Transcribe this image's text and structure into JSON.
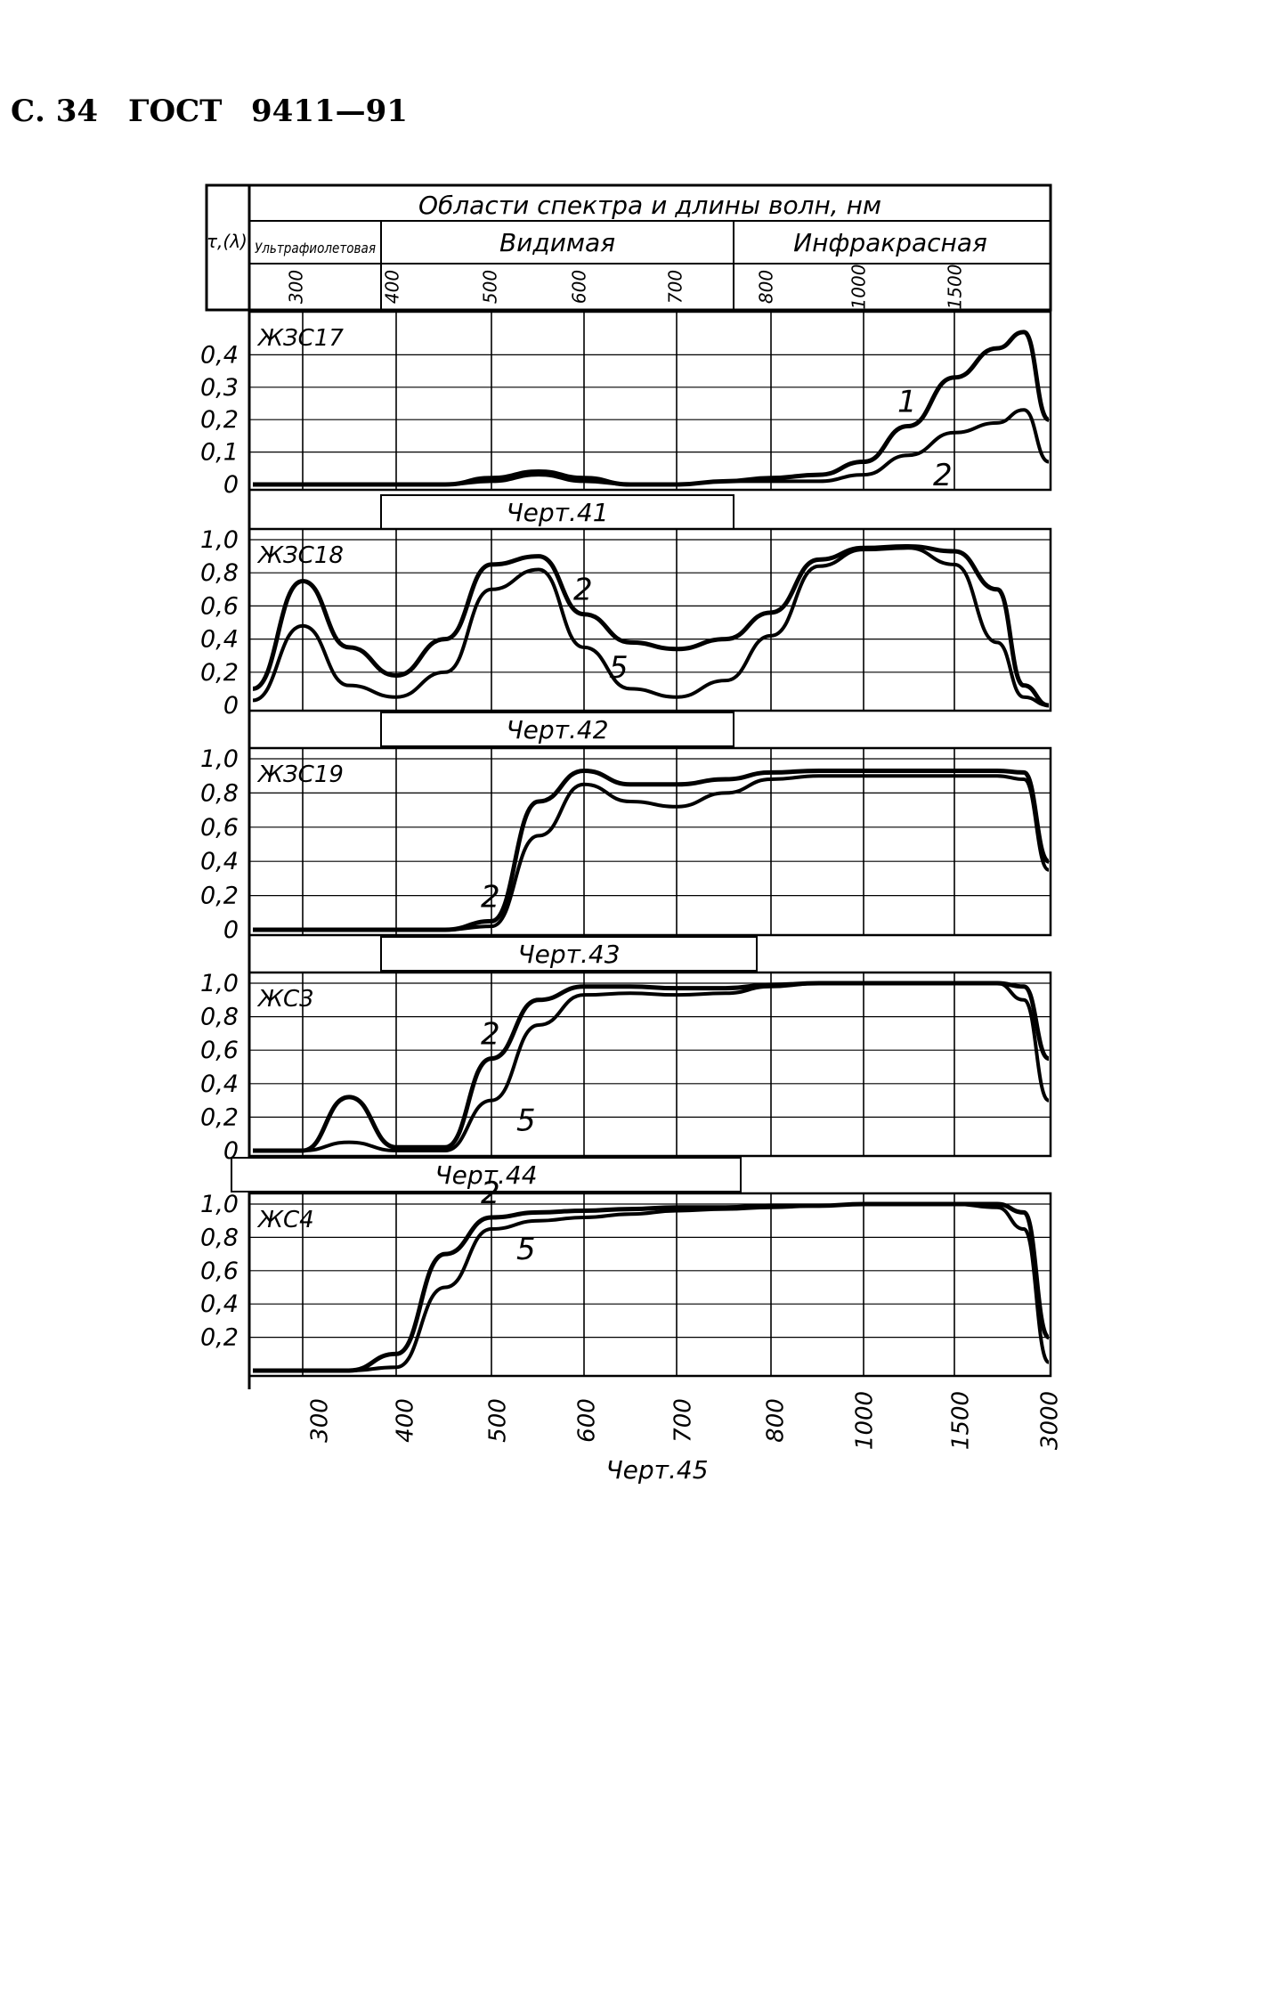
{
  "header": {
    "page_number": "С. 34",
    "standard": "ГОСТ",
    "doc_number": "9411—91"
  },
  "table_head": {
    "corner_label": "τ,(λ)",
    "title": "Области спектра и длины волн, нм",
    "regions": [
      "Ультрафиолетовая",
      "Видимая",
      "Инфракрасная"
    ],
    "wavelength_ticks": [
      "300",
      "400",
      "500",
      "600",
      "700",
      "800",
      "1000",
      "1500"
    ]
  },
  "x_axis_bottom": [
    "300",
    "400",
    "500",
    "600",
    "700",
    "800",
    "1000",
    "1500",
    "3000"
  ],
  "figure_caption": "Черт.45",
  "chart_data": [
    {
      "type": "line",
      "title": "ЖЗС17",
      "caption": "Черт.41",
      "x": [
        "250",
        "300",
        "350",
        "400",
        "450",
        "500",
        "550",
        "600",
        "650",
        "700",
        "750",
        "800",
        "900",
        "1000",
        "1250",
        "1500",
        "2000",
        "2500",
        "3000"
      ],
      "yticks": [
        "0,4",
        "0,3",
        "0,2",
        "0,1",
        "0"
      ],
      "ylim": [
        0,
        0.5
      ],
      "series": [
        {
          "name": "1",
          "values": [
            0,
            0,
            0,
            0,
            0,
            0.02,
            0.04,
            0.02,
            0,
            0,
            0.01,
            0.02,
            0.03,
            0.07,
            0.18,
            0.33,
            0.42,
            0.47,
            0.2
          ]
        },
        {
          "name": "2",
          "values": [
            0,
            0,
            0,
            0,
            0,
            0.01,
            0.03,
            0.01,
            0,
            0,
            0.01,
            0.01,
            0.01,
            0.03,
            0.09,
            0.16,
            0.19,
            0.23,
            0.07
          ]
        }
      ]
    },
    {
      "type": "line",
      "title": "ЖЗС18",
      "caption": "Черт.42",
      "x": [
        "250",
        "300",
        "350",
        "400",
        "450",
        "500",
        "550",
        "600",
        "650",
        "700",
        "750",
        "800",
        "900",
        "1000",
        "1250",
        "1500",
        "2000",
        "2500",
        "3000"
      ],
      "yticks": [
        "1,0",
        "0,8",
        "0,6",
        "0,4",
        "0,2",
        "0"
      ],
      "ylim": [
        0,
        1.0
      ],
      "series": [
        {
          "name": "2",
          "values": [
            0.1,
            0.75,
            0.35,
            0.18,
            0.4,
            0.85,
            0.9,
            0.55,
            0.38,
            0.34,
            0.4,
            0.56,
            0.88,
            0.95,
            0.96,
            0.93,
            0.7,
            0.12,
            0.0
          ]
        },
        {
          "name": "5",
          "values": [
            0.03,
            0.48,
            0.12,
            0.05,
            0.2,
            0.7,
            0.82,
            0.35,
            0.1,
            0.05,
            0.15,
            0.42,
            0.84,
            0.94,
            0.95,
            0.85,
            0.38,
            0.05,
            0.0
          ]
        }
      ]
    },
    {
      "type": "line",
      "title": "ЖЗС19",
      "caption": "Черт.43",
      "x": [
        "250",
        "300",
        "350",
        "400",
        "450",
        "500",
        "550",
        "600",
        "650",
        "700",
        "750",
        "800",
        "900",
        "1000",
        "1250",
        "1500",
        "2000",
        "2500",
        "3000"
      ],
      "yticks": [
        "1,0",
        "0,8",
        "0,6",
        "0,4",
        "0,2",
        "0"
      ],
      "ylim": [
        0,
        1.0
      ],
      "series": [
        {
          "name": "2",
          "values": [
            0,
            0,
            0,
            0,
            0,
            0.05,
            0.75,
            0.93,
            0.85,
            0.85,
            0.88,
            0.92,
            0.93,
            0.93,
            0.93,
            0.93,
            0.93,
            0.92,
            0.4
          ]
        },
        {
          "name": "5",
          "values": [
            0,
            0,
            0,
            0,
            0,
            0.02,
            0.55,
            0.85,
            0.75,
            0.72,
            0.8,
            0.88,
            0.9,
            0.9,
            0.9,
            0.9,
            0.9,
            0.88,
            0.35
          ]
        }
      ]
    },
    {
      "type": "line",
      "title": "ЖС3",
      "caption": "Черт.44",
      "x": [
        "250",
        "300",
        "350",
        "400",
        "450",
        "500",
        "550",
        "600",
        "650",
        "700",
        "750",
        "800",
        "900",
        "1000",
        "1250",
        "1500",
        "2000",
        "2500",
        "3000"
      ],
      "yticks": [
        "1,0",
        "0,8",
        "0,6",
        "0,4",
        "0,2",
        "0"
      ],
      "ylim": [
        0,
        1.0
      ],
      "series": [
        {
          "name": "2",
          "values": [
            0,
            0,
            0.32,
            0.02,
            0.02,
            0.55,
            0.9,
            0.98,
            0.98,
            0.97,
            0.97,
            0.99,
            1.0,
            1.0,
            1.0,
            1.0,
            1.0,
            0.98,
            0.55
          ]
        },
        {
          "name": "5",
          "values": [
            0,
            0,
            0.05,
            0.0,
            0.0,
            0.3,
            0.75,
            0.93,
            0.94,
            0.93,
            0.94,
            0.98,
            1.0,
            1.0,
            1.0,
            1.0,
            1.0,
            0.9,
            0.3
          ]
        }
      ]
    },
    {
      "type": "line",
      "title": "ЖС4",
      "caption": "Черт.45",
      "x": [
        "250",
        "300",
        "350",
        "400",
        "450",
        "500",
        "550",
        "600",
        "650",
        "700",
        "750",
        "800",
        "900",
        "1000",
        "1250",
        "1500",
        "2000",
        "2500",
        "3000"
      ],
      "yticks": [
        "1,0",
        "0,8",
        "0,6",
        "0,4",
        "0,2"
      ],
      "ylim": [
        0,
        1.0
      ],
      "series": [
        {
          "name": "2",
          "values": [
            0,
            0,
            0,
            0.1,
            0.7,
            0.92,
            0.95,
            0.96,
            0.97,
            0.98,
            0.98,
            0.99,
            0.99,
            1.0,
            1.0,
            1.0,
            1.0,
            0.95,
            0.2
          ]
        },
        {
          "name": "5",
          "values": [
            0,
            0,
            0,
            0.02,
            0.5,
            0.85,
            0.9,
            0.92,
            0.94,
            0.96,
            0.97,
            0.98,
            0.99,
            1.0,
            1.0,
            1.0,
            0.98,
            0.85,
            0.05
          ]
        }
      ]
    }
  ]
}
